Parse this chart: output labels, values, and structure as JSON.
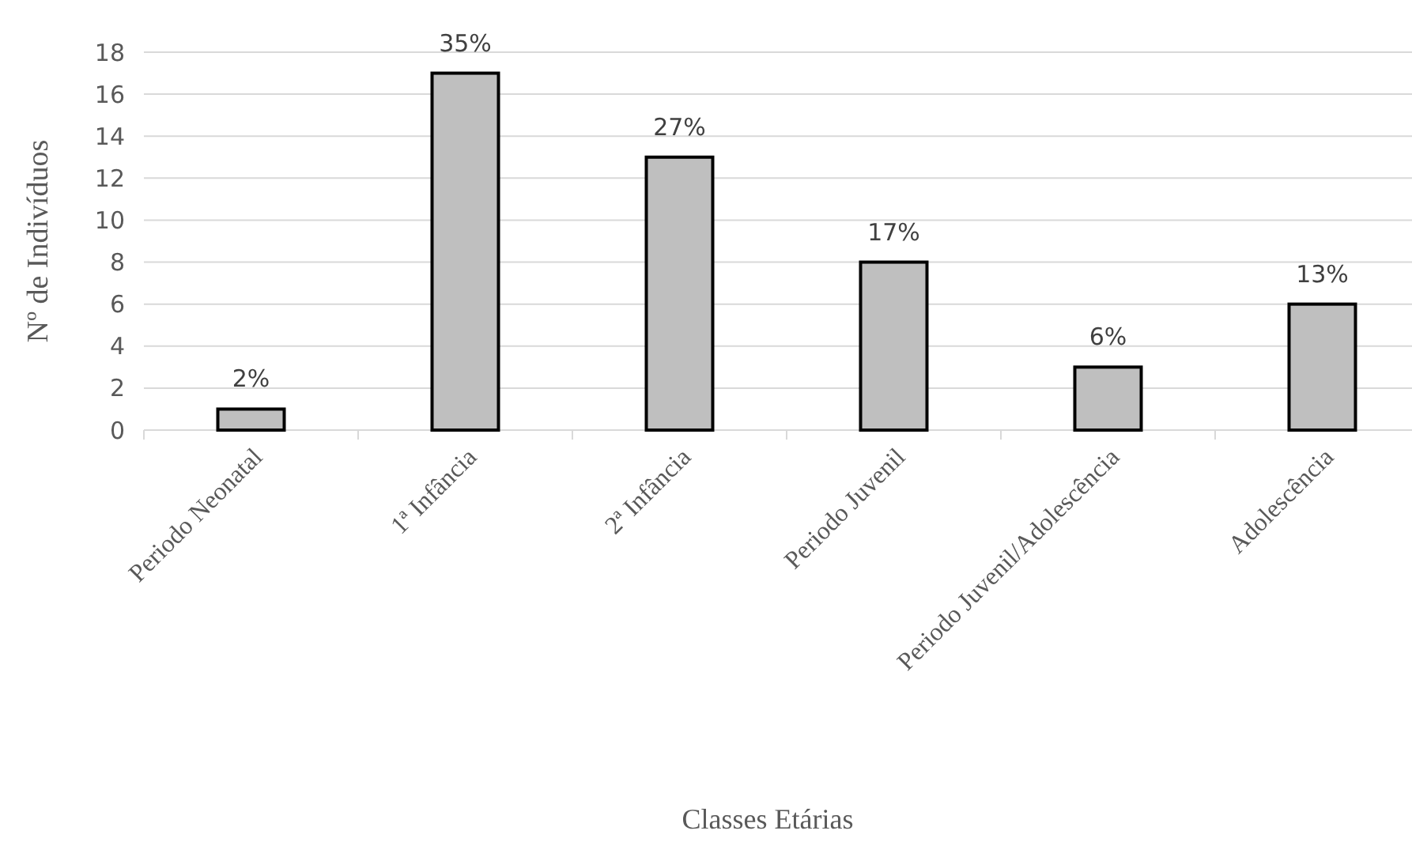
{
  "chart_data": {
    "type": "bar",
    "xlabel": "Classes Etárias",
    "ylabel": "Nº de Indivíduos",
    "categories": [
      "Periodo Neonatal",
      "1ª Infância",
      "2ª Infância",
      "Periodo Juvenil",
      "Periodo Juvenil/Adolescência",
      "Adolescência"
    ],
    "values": [
      1,
      17,
      13,
      8,
      3,
      6
    ],
    "annotations": [
      {
        "text": "2%",
        "x": "Periodo Neonatal",
        "y": 1
      },
      {
        "text": "35%",
        "x": "1ª Infância",
        "y": 17
      },
      {
        "text": "27%",
        "x": "2ª Infância",
        "y": 13
      },
      {
        "text": "17%",
        "x": "Periodo Juvenil",
        "y": 8
      },
      {
        "text": "6%",
        "x": "Periodo Juvenil/Adolescência",
        "y": 3
      },
      {
        "text": "13%",
        "x": "Adolescência",
        "y": 6
      }
    ],
    "color": "#bfbfbf",
    "ylim": [
      0,
      18
    ],
    "yticks": [
      0,
      2,
      4,
      6,
      8,
      10,
      12,
      14,
      16,
      18
    ],
    "grid": "y"
  }
}
